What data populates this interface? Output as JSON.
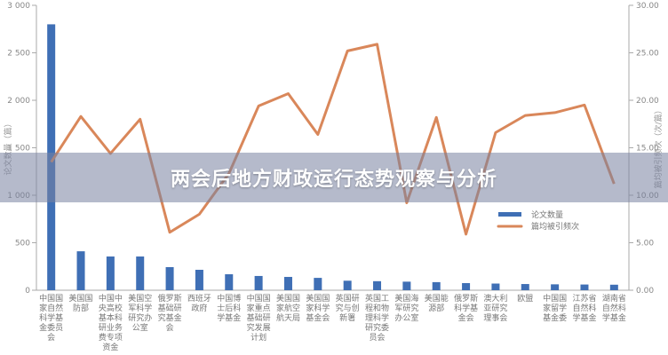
{
  "banner": {
    "title": "两会后地方财政运行态势观察与分析"
  },
  "chart_data": {
    "type": "bar+line",
    "categories": [
      "中国国家自然科学基金委员会",
      "美国国防部",
      "中国中央高校基本科研业务费专项资金",
      "美国空军科学研究办公室",
      "俄罗斯基础研究基金会",
      "西班牙政府",
      "中国博士后科学基金",
      "中国国家重点基础研究发展计划",
      "美国国家航空航天局",
      "美国国家科学基金会",
      "英国研究与创新署",
      "英国工程和物理科学研究委员会",
      "美国海军研究办公室",
      "美国能源部",
      "俄罗斯科学基金会",
      "澳大利亚研究理事会",
      "欧盟",
      "中国国家留学基金委",
      "江苏省自然科学基金",
      "湖南省自然科学基金"
    ],
    "series": [
      {
        "name": "论文数量",
        "type": "bar",
        "axis": "left",
        "color": "#3f6fb5",
        "values": [
          2800,
          410,
          355,
          355,
          243,
          215,
          168,
          150,
          140,
          130,
          100,
          95,
          90,
          85,
          75,
          70,
          65,
          62,
          60,
          58
        ]
      },
      {
        "name": "篇均被引频次",
        "type": "line",
        "axis": "right",
        "color": "#d9875a",
        "values": [
          13.5,
          18.3,
          14.4,
          18.0,
          6.1,
          8.0,
          12.3,
          19.4,
          20.7,
          16.4,
          25.2,
          25.9,
          9.2,
          18.2,
          5.9,
          16.6,
          18.4,
          18.7,
          19.5,
          11.2
        ]
      }
    ],
    "ylabel": "论文数量（篇）",
    "y2label": "篇均被引频次（次/篇）",
    "ylim": [
      0,
      3000
    ],
    "y2lim": [
      0,
      30
    ],
    "yticks": [
      "0",
      "500",
      "1 000",
      "1 500",
      "2 000",
      "2 500",
      "3 000"
    ],
    "y2ticks": [
      "0.00",
      "5.00",
      "10.00",
      "15.00",
      "20.00",
      "25.00",
      "30.00"
    ],
    "legend": "right",
    "grid": false
  }
}
